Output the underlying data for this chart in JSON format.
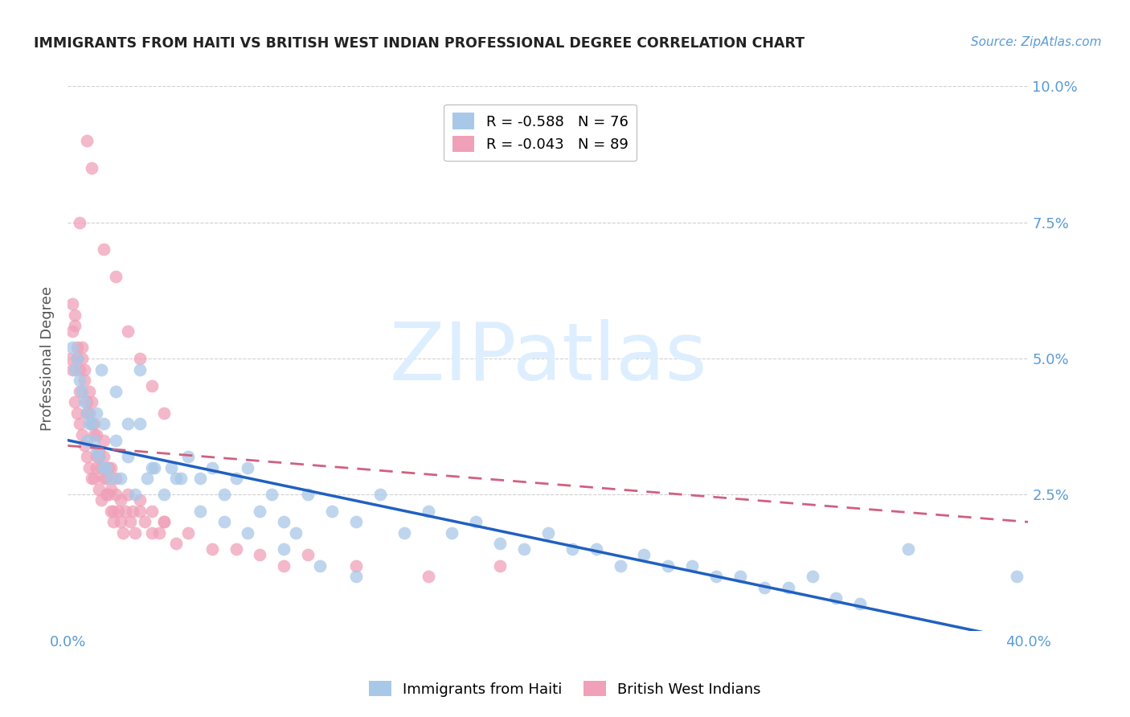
{
  "title": "IMMIGRANTS FROM HAITI VS BRITISH WEST INDIAN PROFESSIONAL DEGREE CORRELATION CHART",
  "source": "Source: ZipAtlas.com",
  "ylabel": "Professional Degree",
  "x_min": 0.0,
  "x_max": 0.4,
  "y_min": 0.0,
  "y_max": 0.1,
  "haiti_R": -0.588,
  "haiti_N": 76,
  "bwi_R": -0.043,
  "bwi_N": 89,
  "haiti_color": "#a8c8e8",
  "bwi_color": "#f0a0b8",
  "haiti_line_color": "#2060c0",
  "bwi_line_color": "#d06080",
  "grid_color": "#d0d0d0",
  "background_color": "#ffffff",
  "watermark_text": "ZIPatlas",
  "watermark_color": "#ddeeff",
  "legend_label_haiti": "Immigrants from Haiti",
  "legend_label_bwi": "British West Indians",
  "haiti_line_x0": 0.0,
  "haiti_line_y0": 0.035,
  "haiti_line_x1": 0.4,
  "haiti_line_y1": -0.002,
  "bwi_line_x0": 0.0,
  "bwi_line_y0": 0.034,
  "bwi_line_x1": 0.4,
  "bwi_line_y1": 0.02,
  "haiti_scatter_x": [
    0.002,
    0.003,
    0.004,
    0.005,
    0.006,
    0.007,
    0.008,
    0.009,
    0.01,
    0.011,
    0.012,
    0.013,
    0.014,
    0.015,
    0.016,
    0.018,
    0.02,
    0.022,
    0.025,
    0.028,
    0.03,
    0.033,
    0.036,
    0.04,
    0.043,
    0.047,
    0.05,
    0.055,
    0.06,
    0.065,
    0.07,
    0.075,
    0.08,
    0.085,
    0.09,
    0.095,
    0.1,
    0.11,
    0.12,
    0.13,
    0.14,
    0.15,
    0.16,
    0.17,
    0.18,
    0.19,
    0.2,
    0.21,
    0.22,
    0.23,
    0.24,
    0.25,
    0.26,
    0.27,
    0.28,
    0.29,
    0.3,
    0.31,
    0.32,
    0.33,
    0.008,
    0.012,
    0.015,
    0.02,
    0.025,
    0.03,
    0.035,
    0.045,
    0.055,
    0.065,
    0.075,
    0.09,
    0.105,
    0.12,
    0.35,
    0.395
  ],
  "haiti_scatter_y": [
    0.052,
    0.048,
    0.05,
    0.046,
    0.044,
    0.042,
    0.04,
    0.038,
    0.038,
    0.035,
    0.033,
    0.032,
    0.048,
    0.03,
    0.03,
    0.028,
    0.044,
    0.028,
    0.038,
    0.025,
    0.048,
    0.028,
    0.03,
    0.025,
    0.03,
    0.028,
    0.032,
    0.028,
    0.03,
    0.025,
    0.028,
    0.03,
    0.022,
    0.025,
    0.02,
    0.018,
    0.025,
    0.022,
    0.02,
    0.025,
    0.018,
    0.022,
    0.018,
    0.02,
    0.016,
    0.015,
    0.018,
    0.015,
    0.015,
    0.012,
    0.014,
    0.012,
    0.012,
    0.01,
    0.01,
    0.008,
    0.008,
    0.01,
    0.006,
    0.005,
    0.035,
    0.04,
    0.038,
    0.035,
    0.032,
    0.038,
    0.03,
    0.028,
    0.022,
    0.02,
    0.018,
    0.015,
    0.012,
    0.01,
    0.015,
    0.01
  ],
  "bwi_scatter_x": [
    0.001,
    0.002,
    0.002,
    0.003,
    0.003,
    0.004,
    0.004,
    0.005,
    0.005,
    0.006,
    0.006,
    0.007,
    0.007,
    0.008,
    0.008,
    0.009,
    0.009,
    0.01,
    0.01,
    0.011,
    0.011,
    0.012,
    0.012,
    0.013,
    0.013,
    0.014,
    0.015,
    0.015,
    0.016,
    0.017,
    0.018,
    0.018,
    0.019,
    0.02,
    0.021,
    0.022,
    0.023,
    0.025,
    0.027,
    0.03,
    0.032,
    0.035,
    0.038,
    0.04,
    0.002,
    0.003,
    0.004,
    0.005,
    0.006,
    0.007,
    0.008,
    0.009,
    0.01,
    0.011,
    0.012,
    0.013,
    0.014,
    0.015,
    0.016,
    0.017,
    0.018,
    0.019,
    0.02,
    0.022,
    0.024,
    0.026,
    0.028,
    0.03,
    0.035,
    0.04,
    0.045,
    0.05,
    0.06,
    0.07,
    0.08,
    0.09,
    0.1,
    0.12,
    0.15,
    0.18,
    0.02,
    0.015,
    0.01,
    0.008,
    0.005,
    0.025,
    0.03,
    0.035,
    0.04
  ],
  "bwi_scatter_y": [
    0.05,
    0.048,
    0.055,
    0.042,
    0.058,
    0.04,
    0.05,
    0.038,
    0.048,
    0.036,
    0.052,
    0.034,
    0.046,
    0.032,
    0.042,
    0.03,
    0.04,
    0.028,
    0.038,
    0.028,
    0.036,
    0.032,
    0.03,
    0.026,
    0.032,
    0.024,
    0.028,
    0.035,
    0.025,
    0.025,
    0.03,
    0.022,
    0.02,
    0.025,
    0.022,
    0.02,
    0.018,
    0.025,
    0.022,
    0.024,
    0.02,
    0.022,
    0.018,
    0.02,
    0.06,
    0.056,
    0.052,
    0.044,
    0.05,
    0.048,
    0.04,
    0.044,
    0.042,
    0.038,
    0.036,
    0.033,
    0.03,
    0.032,
    0.028,
    0.03,
    0.026,
    0.022,
    0.028,
    0.024,
    0.022,
    0.02,
    0.018,
    0.022,
    0.018,
    0.02,
    0.016,
    0.018,
    0.015,
    0.015,
    0.014,
    0.012,
    0.014,
    0.012,
    0.01,
    0.012,
    0.065,
    0.07,
    0.085,
    0.09,
    0.075,
    0.055,
    0.05,
    0.045,
    0.04
  ]
}
